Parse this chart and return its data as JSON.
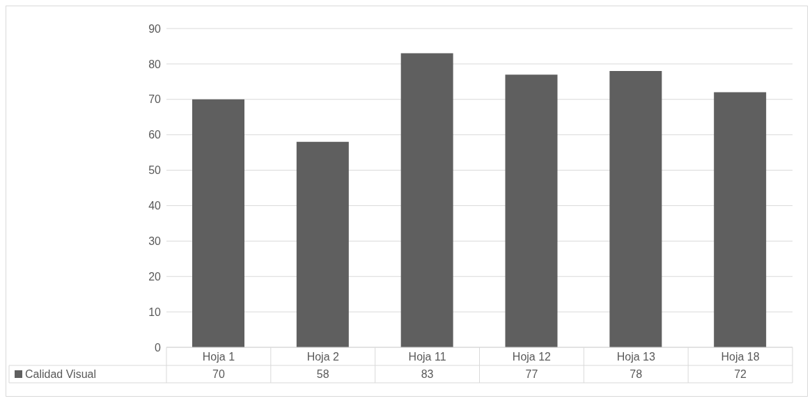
{
  "chart_data": {
    "type": "bar",
    "categories": [
      "Hoja 1",
      "Hoja 2",
      "Hoja 11",
      "Hoja 12",
      "Hoja 13",
      "Hoja 18"
    ],
    "series": [
      {
        "name": "Calidad Visual",
        "color": "#5f5f5f",
        "values": [
          70,
          58,
          83,
          77,
          78,
          72
        ]
      }
    ],
    "ylim": [
      0,
      90
    ],
    "yticks": [
      0,
      10,
      20,
      30,
      40,
      50,
      60,
      70,
      80,
      90
    ],
    "grid": "y",
    "data_labels": true,
    "legend": "bottom"
  }
}
